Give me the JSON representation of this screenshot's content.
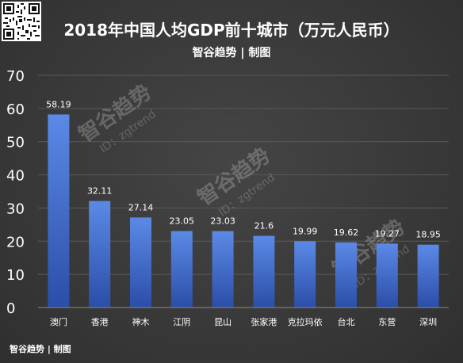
{
  "title": "2018年中国人均GDP前十城市（万元人民币）",
  "subtitle": "智谷趋势 | 制图",
  "footer": "智谷趋势 | 制图",
  "watermark": {
    "brand": "智谷趋势",
    "id": "ID：zgtrend"
  },
  "colors": {
    "bar_top": "#5b8ae6",
    "bar_bottom": "#2b4ea8",
    "grid": "#5a5a5a",
    "text": "#ffffff",
    "background": "#3a3a3a"
  },
  "chart_data": {
    "type": "bar",
    "categories": [
      "澳门",
      "香港",
      "神木",
      "江阴",
      "昆山",
      "张家港",
      "克拉玛依",
      "台北",
      "东营",
      "深圳"
    ],
    "values": [
      58.19,
      32.11,
      27.14,
      23.05,
      23.03,
      21.6,
      19.99,
      19.62,
      19.27,
      18.95
    ],
    "value_labels": [
      "58.19",
      "32.11",
      "27.14",
      "23.05",
      "23.03",
      "21.6",
      "19.99",
      "19.62",
      "19.27",
      "18.95"
    ],
    "title": "2018年中国人均GDP前十城市（万元人民币）",
    "xlabel": "",
    "ylabel": "",
    "ylim": [
      0,
      70
    ],
    "yticks": [
      0,
      10,
      20,
      30,
      40,
      50,
      60,
      70
    ],
    "grid": true,
    "legend": "none"
  }
}
